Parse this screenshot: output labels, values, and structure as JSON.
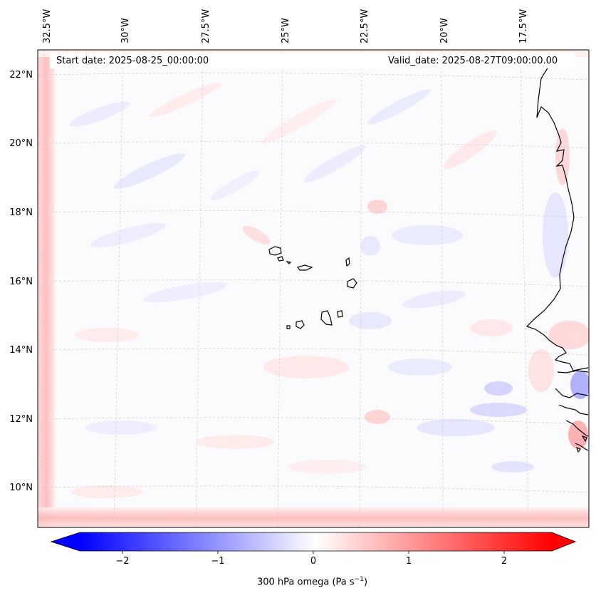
{
  "header": {
    "start_date": "Start date: 2025-08-25_00:00:00",
    "valid_date": "Valid_date: 2025-08-27T09:00:00.00"
  },
  "axes": {
    "lon_labels": [
      "32.5°W",
      "30°W",
      "27.5°W",
      "25°W",
      "22.5°W",
      "20°W",
      "17.5°W"
    ],
    "lat_labels": [
      "22°N",
      "20°N",
      "18°N",
      "16°N",
      "14°N",
      "12°N",
      "10°N"
    ]
  },
  "colorbar": {
    "ticks": [
      "−2",
      "−1",
      "0",
      "1",
      "2"
    ],
    "label_main": "300 hPa omega (Pa s",
    "label_sup": "−1",
    "label_close": ")",
    "min": -2.5,
    "max": 2.5,
    "neg_color": "#0000ff",
    "mid_color": "#ffffff",
    "pos_color": "#ff0000"
  },
  "map": {
    "variable": "300 hPa omega",
    "region": "Cape Verde / West African coast",
    "features": [
      "Cape Verde islands",
      "West African coastline"
    ]
  }
}
